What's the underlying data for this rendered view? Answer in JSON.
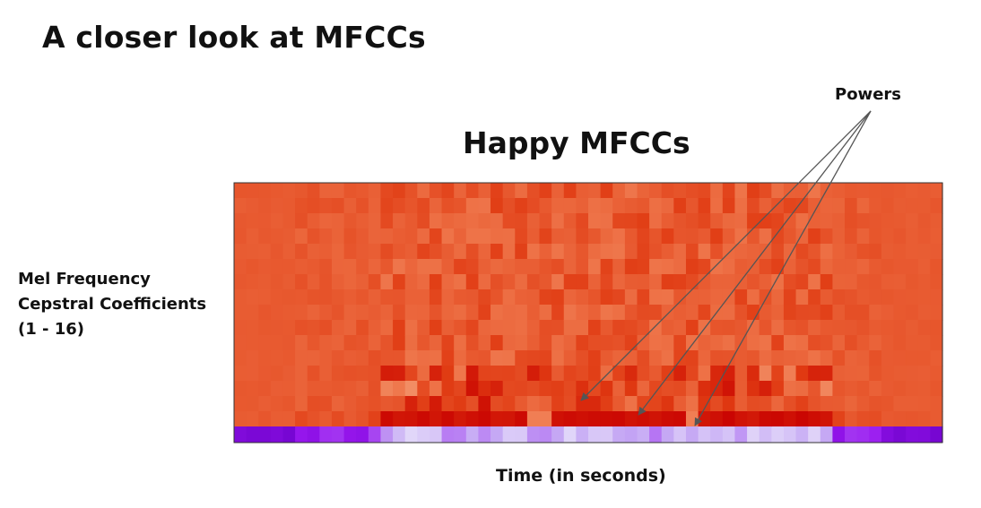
{
  "slide": {
    "title": "A closer look at MFCCs"
  },
  "chart_data": {
    "type": "heatmap",
    "title": "Happy MFCCs",
    "xlabel": "Time (in seconds)",
    "ylabel_lines": [
      "Mel Frequency",
      "Cepstral Coefficients",
      "(1 - 16)"
    ],
    "annotation": {
      "label": "Powers",
      "arrow_count": 3
    },
    "rows": 16,
    "cols": 58,
    "colormap_main": [
      "#c80000",
      "#e03a12",
      "#ee7348",
      "#f8b894"
    ],
    "colormap_power": [
      "#6b00c8",
      "#9a18f0",
      "#c4a6f4",
      "#e8e2fa"
    ]
  }
}
